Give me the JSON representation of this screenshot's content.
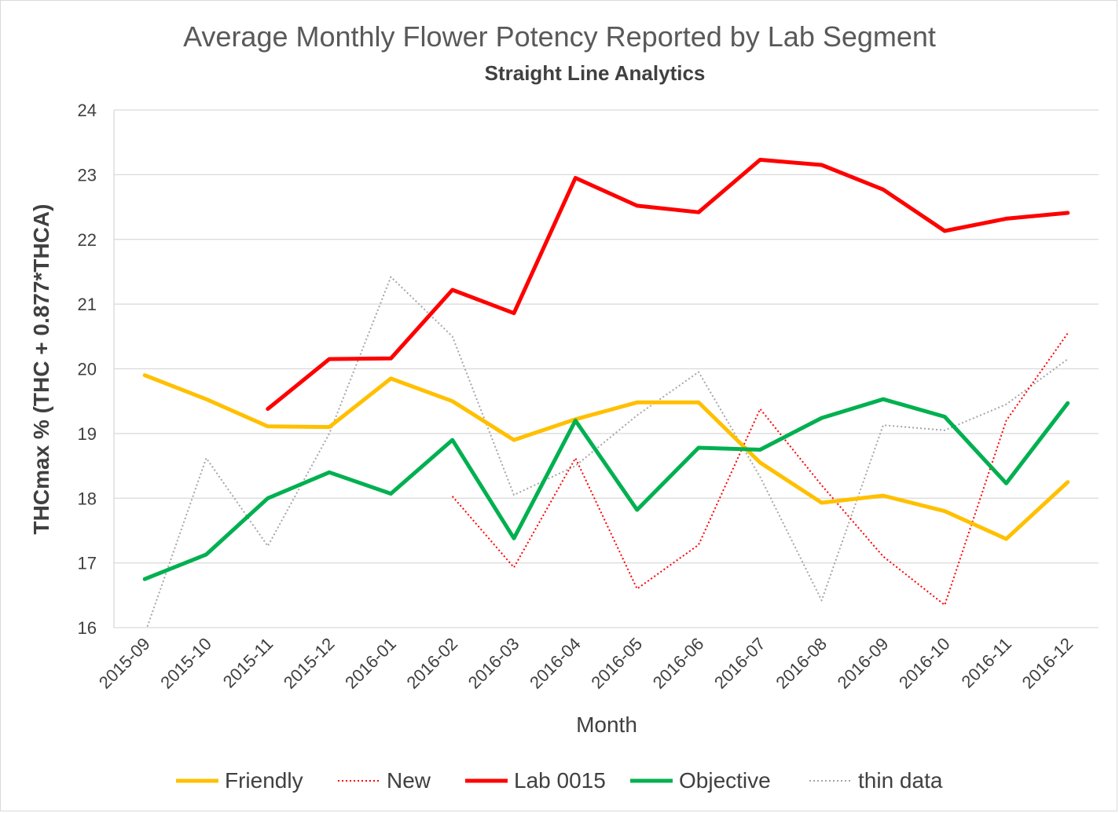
{
  "title": "Average Monthly Flower Potency Reported by Lab Segment",
  "subtitle": "Straight Line Analytics",
  "chart_data": {
    "type": "line",
    "xlabel": "Month",
    "ylabel": "THCmax % (THC + 0.877*THCA)",
    "ylim": [
      16,
      24
    ],
    "yticks": [
      "16",
      "17",
      "18",
      "19",
      "20",
      "21",
      "22",
      "23",
      "24"
    ],
    "grid": "horizontal",
    "legend_position": "bottom",
    "categories": [
      "2015-09",
      "2015-10",
      "2015-11",
      "2015-12",
      "2016-01",
      "2016-02",
      "2016-03",
      "2016-04",
      "2016-05",
      "2016-06",
      "2016-07",
      "2016-08",
      "2016-09",
      "2016-10",
      "2016-11",
      "2016-12"
    ],
    "series": [
      {
        "name": "Friendly",
        "color": "#FFC000",
        "style": "solid-thick",
        "values": [
          19.9,
          19.53,
          19.11,
          19.1,
          19.85,
          19.5,
          18.9,
          19.22,
          19.48,
          19.48,
          18.55,
          17.93,
          18.04,
          17.8,
          17.37,
          18.25
        ]
      },
      {
        "name": "New",
        "color": "#FF0000",
        "style": "dotted",
        "values": [
          null,
          null,
          null,
          null,
          null,
          18.03,
          16.93,
          18.62,
          16.6,
          17.28,
          19.38,
          18.2,
          17.1,
          16.35,
          19.2,
          20.55
        ]
      },
      {
        "name": "Lab 0015",
        "color": "#FF0000",
        "style": "solid-thick",
        "values": [
          null,
          null,
          19.38,
          20.15,
          20.16,
          21.22,
          20.86,
          22.95,
          22.52,
          22.42,
          23.23,
          23.15,
          22.77,
          22.13,
          22.32,
          22.41
        ]
      },
      {
        "name": "Objective",
        "color": "#00B050",
        "style": "solid-thick",
        "values": [
          16.75,
          17.13,
          18.0,
          18.4,
          18.07,
          18.9,
          17.38,
          19.2,
          17.82,
          18.78,
          18.75,
          19.24,
          19.53,
          19.26,
          18.23,
          19.47
        ]
      },
      {
        "name": "thin data",
        "color": "#A6A6A6",
        "style": "dotted",
        "values": [
          15.9,
          18.62,
          17.26,
          19.0,
          21.42,
          20.5,
          18.05,
          18.5,
          19.28,
          19.95,
          18.33,
          16.42,
          19.13,
          19.05,
          19.45,
          20.15
        ]
      }
    ]
  }
}
